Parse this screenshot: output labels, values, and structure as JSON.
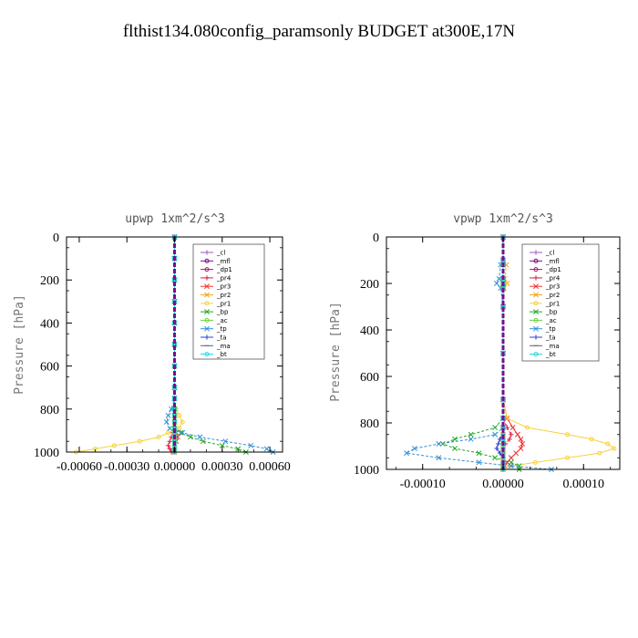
{
  "figure": {
    "title": "flthist134.080config_paramsonly  BUDGET at300E,17N"
  },
  "legend_entries": [
    {
      "name": "_cl",
      "color": "#9b59c6",
      "marker": "+"
    },
    {
      "name": "_mfl",
      "color": "#7a0f8a",
      "marker": "o"
    },
    {
      "name": "_dp1",
      "color": "#b0186a",
      "marker": "o"
    },
    {
      "name": "_pr4",
      "color": "#d81b3c",
      "marker": "+"
    },
    {
      "name": "_pr3",
      "color": "#f03030",
      "marker": "x"
    },
    {
      "name": "_pr2",
      "color": "#f2a623",
      "marker": "x"
    },
    {
      "name": "_pr1",
      "color": "#f7d23a",
      "marker": "o"
    },
    {
      "name": "_bp",
      "color": "#23a823",
      "marker": "x"
    },
    {
      "name": "_ac",
      "color": "#6fd040",
      "marker": "o"
    },
    {
      "name": "_tp",
      "color": "#2f8fd8",
      "marker": "x"
    },
    {
      "name": "_ta",
      "color": "#2a40c8",
      "marker": "+"
    },
    {
      "name": "_ma",
      "color": "#556677",
      "marker": "-"
    },
    {
      "name": "_bt",
      "color": "#20d8e0",
      "marker": "o"
    }
  ],
  "chart_data": [
    {
      "type": "line",
      "title": "upwp   1xm^2/s^3",
      "ylabel": "Pressure [hPa]",
      "xlabel": "",
      "xlim": [
        -0.00068,
        0.00068
      ],
      "ylim": [
        1000,
        0
      ],
      "xticks": [
        -0.0006,
        -0.0003,
        0.0,
        0.0003,
        0.0006
      ],
      "xtick_labels": [
        "-0.00060",
        "-0.00030",
        "0.00000",
        "0.00030",
        "0.00060"
      ],
      "yticks": [
        0,
        200,
        400,
        600,
        800,
        1000
      ],
      "y": [
        0,
        100,
        200,
        300,
        400,
        500,
        600,
        700,
        750,
        800,
        830,
        860,
        890,
        910,
        930,
        950,
        970,
        985,
        1000
      ],
      "series": [
        {
          "name": "_cl",
          "values": [
            0,
            0,
            0,
            0,
            0,
            0,
            0,
            0,
            0,
            0,
            0,
            0,
            0,
            0,
            0,
            0,
            0,
            0,
            0
          ]
        },
        {
          "name": "_mfl",
          "values": [
            0,
            0,
            0,
            0,
            0,
            0,
            0,
            0,
            0,
            0,
            0,
            0,
            0,
            0,
            0,
            0,
            0,
            0,
            0
          ]
        },
        {
          "name": "_dp1",
          "values": [
            0,
            0,
            0,
            0,
            0,
            0,
            0,
            0,
            0,
            0,
            0,
            0,
            0,
            0,
            0,
            0,
            0,
            0,
            0
          ]
        },
        {
          "name": "_pr4",
          "values": [
            0,
            0,
            0,
            0,
            0,
            0,
            0,
            0,
            0,
            0,
            0,
            0,
            0,
            -1e-05,
            -2e-05,
            -3e-05,
            -4e-05,
            -3e-05,
            -2e-05
          ]
        },
        {
          "name": "_pr3",
          "values": [
            0,
            0,
            0,
            0,
            0,
            0,
            0,
            0,
            0,
            0,
            0,
            0,
            0,
            1e-05,
            2e-05,
            1e-05,
            0,
            0,
            0
          ]
        },
        {
          "name": "_pr2",
          "values": [
            0,
            0,
            0,
            0,
            0,
            0,
            0,
            0,
            0,
            0,
            0,
            0,
            0,
            0,
            0,
            0,
            0,
            0,
            0
          ]
        },
        {
          "name": "_pr1",
          "values": [
            0,
            0,
            0,
            0,
            0,
            0,
            0,
            0,
            0,
            1e-05,
            3e-05,
            5e-05,
            3e-05,
            -4e-05,
            -0.0001,
            -0.00022,
            -0.00038,
            -0.0005,
            -0.00062
          ]
        },
        {
          "name": "_bp",
          "values": [
            0,
            0,
            0,
            0,
            0,
            0,
            0,
            0,
            0,
            0,
            0,
            0,
            0,
            4e-05,
            0.0001,
            0.00018,
            0.0003,
            0.0004,
            0.00045
          ]
        },
        {
          "name": "_ac",
          "values": [
            0,
            0,
            0,
            0,
            0,
            0,
            0,
            0,
            0,
            0,
            0,
            0,
            0,
            0,
            0,
            0,
            0,
            0,
            0
          ]
        },
        {
          "name": "_tp",
          "values": [
            0,
            0,
            0,
            0,
            0,
            0,
            0,
            0,
            0,
            -2e-05,
            -4e-05,
            -5e-05,
            -3e-05,
            5e-05,
            0.00016,
            0.00032,
            0.00048,
            0.00058,
            0.00062
          ]
        },
        {
          "name": "_ta",
          "values": [
            0,
            0,
            0,
            0,
            0,
            0,
            0,
            0,
            0,
            0,
            0,
            0,
            0,
            0,
            0,
            0,
            0,
            0,
            0
          ]
        },
        {
          "name": "_ma",
          "values": [
            0,
            0,
            0,
            0,
            0,
            0,
            0,
            0,
            0,
            0,
            0,
            0,
            0,
            0,
            0,
            0,
            0,
            0,
            0
          ]
        },
        {
          "name": "_bt",
          "values": [
            0,
            0,
            0,
            0,
            0,
            0,
            0,
            0,
            0,
            0,
            0,
            0,
            0,
            0,
            0,
            0,
            0,
            0,
            0
          ]
        }
      ]
    },
    {
      "type": "line",
      "title": "vpwp   1xm^2/s^3",
      "ylabel": "Pressure [hPa]",
      "xlabel": "",
      "xlim": [
        -0.000145,
        0.000145
      ],
      "ylim": [
        1000,
        0
      ],
      "xticks": [
        -0.0001,
        0.0,
        0.0001
      ],
      "xtick_labels": [
        "-0.00010",
        "0.00000",
        "0.00010"
      ],
      "yticks": [
        0,
        200,
        400,
        600,
        800,
        1000
      ],
      "y": [
        0,
        100,
        120,
        180,
        200,
        220,
        300,
        500,
        700,
        780,
        820,
        850,
        870,
        890,
        910,
        930,
        950,
        970,
        985,
        1000
      ],
      "series": [
        {
          "name": "_cl",
          "values": [
            0,
            0,
            0,
            0,
            0,
            0,
            0,
            0,
            0,
            0,
            0,
            0,
            0,
            0,
            0,
            0,
            0,
            0,
            0,
            0
          ]
        },
        {
          "name": "_mfl",
          "values": [
            0,
            0,
            0,
            0,
            0,
            0,
            0,
            0,
            0,
            0,
            0,
            0,
            0,
            0,
            0,
            0,
            0,
            0,
            0,
            0
          ]
        },
        {
          "name": "_dp1",
          "values": [
            0,
            0,
            0,
            0,
            0,
            0,
            0,
            0,
            0,
            0,
            0,
            0,
            0,
            0,
            0,
            0,
            0,
            0,
            0,
            0
          ]
        },
        {
          "name": "_pr4",
          "values": [
            0,
            0,
            0,
            0,
            0,
            0,
            0,
            0,
            0,
            0,
            5e-06,
            1e-05,
            8e-06,
            3e-06,
            0,
            0,
            0,
            0,
            0,
            0
          ]
        },
        {
          "name": "_pr3",
          "values": [
            0,
            0,
            0,
            0,
            0,
            0,
            0,
            0,
            0,
            5e-06,
            1.2e-05,
            1.8e-05,
            2.2e-05,
            2.4e-05,
            2.2e-05,
            1.6e-05,
            1e-05,
            5e-06,
            2e-06,
            0
          ]
        },
        {
          "name": "_pr2",
          "values": [
            0,
            0,
            4e-06,
            2e-06,
            5e-06,
            1e-06,
            0,
            0,
            0,
            0,
            0,
            0,
            0,
            0,
            0,
            0,
            0,
            0,
            0,
            0
          ]
        },
        {
          "name": "_pr1",
          "values": [
            0,
            0,
            0,
            0,
            3e-06,
            0,
            0,
            0,
            0,
            5e-06,
            3e-05,
            8e-05,
            0.00011,
            0.00013,
            0.000138,
            0.00012,
            8e-05,
            4e-05,
            1e-05,
            0
          ]
        },
        {
          "name": "_bp",
          "values": [
            0,
            0,
            0,
            0,
            0,
            0,
            0,
            0,
            0,
            0,
            -1e-05,
            -4e-05,
            -6e-05,
            -7.5e-05,
            -6e-05,
            -3e-05,
            -1e-05,
            1e-05,
            2e-05,
            2e-05
          ]
        },
        {
          "name": "_ac",
          "values": [
            0,
            0,
            0,
            0,
            0,
            0,
            0,
            0,
            0,
            0,
            0,
            0,
            0,
            0,
            0,
            0,
            0,
            0,
            0,
            0
          ]
        },
        {
          "name": "_tp",
          "values": [
            0,
            0,
            -3e-06,
            -5e-06,
            -8e-06,
            -3e-06,
            0,
            0,
            0,
            0,
            0,
            -1e-05,
            -4e-05,
            -8e-05,
            -0.00011,
            -0.00012,
            -8e-05,
            -3e-05,
            1e-05,
            6e-05
          ]
        },
        {
          "name": "_ta",
          "values": [
            0,
            0,
            0,
            0,
            0,
            0,
            0,
            0,
            0,
            0,
            0,
            0,
            -4e-06,
            -6e-06,
            -8e-06,
            -4e-06,
            0,
            0,
            0,
            0
          ]
        },
        {
          "name": "_ma",
          "values": [
            0,
            0,
            0,
            0,
            0,
            0,
            0,
            0,
            0,
            0,
            0,
            0,
            0,
            0,
            0,
            0,
            0,
            0,
            0,
            0
          ]
        },
        {
          "name": "_bt",
          "values": [
            0,
            0,
            0,
            0,
            0,
            0,
            0,
            0,
            0,
            0,
            0,
            0,
            0,
            0,
            0,
            0,
            0,
            0,
            0,
            0
          ]
        }
      ]
    }
  ]
}
